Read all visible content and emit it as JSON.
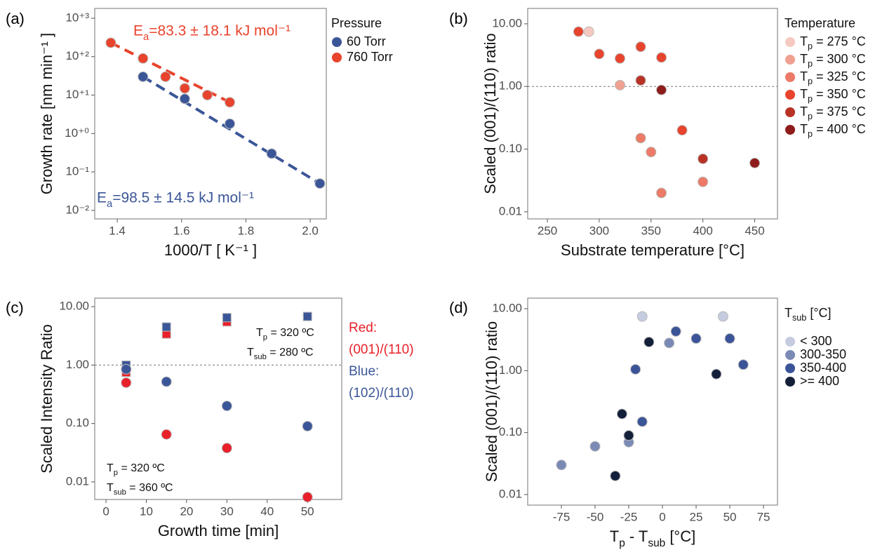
{
  "chart_data": [
    {
      "type": "scatter",
      "panel_label": "(a)",
      "x_label": "1000/T [ K⁻¹ ]",
      "y_label": "Growth rate [nm  min⁻¹ ]",
      "log_y": true,
      "xlim": [
        1.33,
        2.05
      ],
      "ylim": [
        0.006,
        1800
      ],
      "xticks": [
        1.4,
        1.6,
        1.8,
        {
          "value": 2,
          "label": "2.0"
        }
      ],
      "yticks": [
        {
          "value": 1000,
          "label": "10⁺³"
        },
        {
          "value": 100,
          "label": "10⁺²"
        },
        {
          "value": 10,
          "label": "10⁺¹"
        },
        {
          "value": 1,
          "label": "10⁺⁰"
        },
        {
          "value": 0.1,
          "label": "10⁻¹"
        },
        {
          "value": 0.01,
          "label": "10⁻²"
        }
      ],
      "legend_title": "Pressure",
      "series": [
        {
          "name": "60 Torr",
          "color": "#3b5698",
          "x": [
            1.48,
            1.61,
            1.75,
            1.88,
            2.03
          ],
          "values": [
            30,
            8,
            1.8,
            0.3,
            0.05
          ]
        },
        {
          "name": "760 Torr",
          "color": "#e8432c",
          "x": [
            1.38,
            1.48,
            1.55,
            1.61,
            1.68,
            1.75
          ],
          "values": [
            230,
            90,
            30,
            15,
            10,
            6.5
          ]
        }
      ],
      "fits": [
        {
          "color": "#3b5698",
          "x": [
            1.48,
            2.03
          ],
          "values": [
            30,
            0.05
          ]
        },
        {
          "color": "#e8432c",
          "x": [
            1.38,
            1.75
          ],
          "values": [
            230,
            6.5
          ]
        }
      ],
      "annotations": [
        {
          "text": "Ea=83.3 ± 18.1 kJ mol⁻¹",
          "color": "#e8432c"
        },
        {
          "text": "Ea=98.5 ± 14.5 kJ mol⁻¹",
          "color": "#3b5698"
        }
      ]
    },
    {
      "type": "scatter",
      "panel_label": "(b)",
      "x_label": "Substrate temperature [°C]",
      "y_label": "Scaled (001)/(110) ratio",
      "log_y": true,
      "xlim": [
        231,
        472
      ],
      "ylim": [
        0.0077,
        17.6
      ],
      "xticks": [
        250,
        300,
        350,
        400,
        450
      ],
      "yticks": [
        {
          "value": 10,
          "label": "10.00"
        },
        {
          "value": 1,
          "label": "1.00"
        },
        {
          "value": 0.1,
          "label": "0.10"
        },
        0.01
      ],
      "hline": 1,
      "legend_title": "Temperature",
      "series": [
        {
          "name": "Tp = 275 °C",
          "color": "#f6c9c0",
          "x": [
            290
          ],
          "values": [
            7.5
          ]
        },
        {
          "name": "Tp = 300 °C",
          "color": "#f0a090",
          "x": [
            320
          ],
          "values": [
            1.05
          ]
        },
        {
          "name": "Tp = 325 °C",
          "color": "#ec7a66",
          "x": [
            340,
            350,
            360,
            400
          ],
          "values": [
            0.15,
            0.09,
            0.02,
            0.03
          ]
        },
        {
          "name": "Tp = 350 °C",
          "color": "#e8432c",
          "x": [
            280,
            300,
            320,
            340,
            360,
            380
          ],
          "values": [
            7.5,
            3.3,
            2.8,
            4.3,
            2.9,
            0.2
          ]
        },
        {
          "name": "Tp = 375 °C",
          "color": "#b83225",
          "x": [
            340,
            400
          ],
          "values": [
            1.25,
            0.07
          ]
        },
        {
          "name": "Tp = 400 °C",
          "color": "#8e1c1a",
          "x": [
            360,
            450
          ],
          "values": [
            0.88,
            0.06
          ]
        }
      ]
    },
    {
      "type": "scatter",
      "panel_label": "(c)",
      "x_label": "Growth time [min]",
      "y_label": "Scaled Intensity Ratio",
      "log_y": true,
      "xlim": [
        -2.8,
        58.5
      ],
      "ylim": [
        0.005,
        14
      ],
      "xticks": [
        0,
        10,
        20,
        30,
        40,
        50
      ],
      "yticks": [
        {
          "value": 10,
          "label": "10.00"
        },
        {
          "value": 1,
          "label": "1.00"
        },
        {
          "value": 0.1,
          "label": "0.10"
        },
        0.01
      ],
      "hline": 1,
      "legend_text": [
        {
          "text": "Red:",
          "color": "#e8202a"
        },
        {
          "text": "(001)/(110)",
          "color": "#e8202a"
        },
        {
          "text": "Blue:",
          "color": "#3b5698"
        },
        {
          "text": "(102)/(110)",
          "color": "#3b5698"
        }
      ],
      "series": [
        {
          "color": "#e8202a",
          "marker": "square",
          "x": [
            5,
            15,
            30,
            50
          ],
          "values": [
            0.75,
            3.4,
            5.5,
            6.8
          ]
        },
        {
          "color": "#3b5698",
          "marker": "square",
          "x": [
            5,
            15,
            30,
            50
          ],
          "values": [
            1.0,
            4.5,
            6.5,
            6.8
          ]
        },
        {
          "color": "#e8202a",
          "marker": "circle",
          "x": [
            5,
            15,
            30,
            50
          ],
          "values": [
            0.5,
            0.065,
            0.038,
            0.0055
          ]
        },
        {
          "color": "#3b5698",
          "marker": "circle",
          "x": [
            5,
            15,
            30,
            50
          ],
          "values": [
            0.85,
            0.52,
            0.2,
            0.09
          ]
        }
      ],
      "annotations": [
        {
          "text": "Tp = 320 ºC"
        },
        {
          "text": "Tsub = 280 ºC"
        },
        {
          "text": "Tp = 320 ºC"
        },
        {
          "text": "Tsub = 360 ºC"
        }
      ]
    },
    {
      "type": "scatter",
      "panel_label": "(d)",
      "x_label": "Tp - Tsub [°C]",
      "y_label": "Scaled (001)/(110) ratio",
      "log_y": true,
      "xlim": [
        -100,
        85.4
      ],
      "ylim": [
        0.00675,
        14.8
      ],
      "xticks": [
        -75,
        -50,
        -25,
        0,
        25,
        50,
        75
      ],
      "yticks": [
        {
          "value": 10,
          "label": "10.00"
        },
        {
          "value": 1,
          "label": "1.00"
        },
        {
          "value": 0.1,
          "label": "0.10"
        },
        0.01
      ],
      "legend_title": "Tsub [°C]",
      "series": [
        {
          "name": "< 300",
          "color": "#c5cce0",
          "x": [
            -15,
            45
          ],
          "values": [
            7.5,
            7.5
          ]
        },
        {
          "name": "300-350",
          "color": "#7a8ab5",
          "x": [
            -75,
            -50,
            -25,
            5
          ],
          "values": [
            0.03,
            0.06,
            0.07,
            2.8
          ]
        },
        {
          "name": "350-400",
          "color": "#3b5498",
          "x": [
            10,
            25,
            50,
            60,
            -20,
            -15
          ],
          "values": [
            4.3,
            3.3,
            3.3,
            1.25,
            1.05,
            0.15
          ]
        },
        {
          "name": ">= 400",
          "color": "#14203a",
          "x": [
            -10,
            -30,
            -25,
            -35,
            40
          ],
          "values": [
            2.9,
            0.2,
            0.09,
            0.02,
            0.88
          ]
        }
      ]
    }
  ]
}
